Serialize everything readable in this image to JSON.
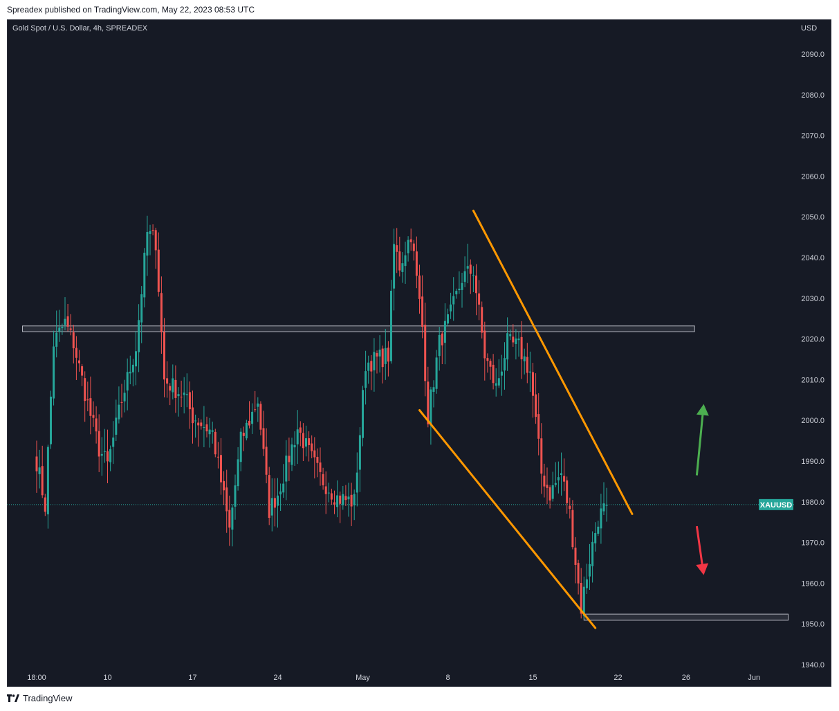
{
  "header": {
    "caption": "Spreadex published on TradingView.com, May 22, 2023 08:53 UTC"
  },
  "footer": {
    "brand": "TradingView"
  },
  "colors": {
    "background": "#161a25",
    "up": "#26a69a",
    "down": "#ef5350",
    "trendline": "#ff9800",
    "zone_fill": "#2a2e39",
    "zone_border": "#b2b5be",
    "price_line": "#26a69a",
    "arrow_up": "#4caf50",
    "arrow_down": "#f23645"
  },
  "chart_data": {
    "type": "candlestick",
    "title": "Gold Spot / U.S. Dollar, 4h, SPREADEX",
    "symbol": "XAUUSD",
    "currency": "USD",
    "timeframe": "4h",
    "grid": false,
    "ylim": [
      1934,
      2100
    ],
    "y_ticks": [
      2090.0,
      2080.0,
      2070.0,
      2060.0,
      2050.0,
      2040.0,
      2030.0,
      2020.0,
      2010.0,
      2000.0,
      1990.0,
      1980.0,
      1970.0,
      1960.0,
      1950.0,
      1940.0
    ],
    "x_tick_labels": [
      "18:00",
      "10",
      "17",
      "24",
      "May",
      "8",
      "15",
      "22",
      "26",
      "Jun"
    ],
    "x_tick_bar_index": [
      0,
      25,
      55,
      85,
      115,
      145,
      175,
      205,
      229,
      253
    ],
    "last_price": 1979.3,
    "price_tag": "XAUUSD",
    "key_path": [
      [
        0,
        1990
      ],
      [
        3,
        1979
      ],
      [
        6,
        2019
      ],
      [
        10,
        2024
      ],
      [
        13,
        2019
      ],
      [
        18,
        2004
      ],
      [
        22,
        1993
      ],
      [
        25,
        1989
      ],
      [
        30,
        2005
      ],
      [
        35,
        2018
      ],
      [
        39,
        2046
      ],
      [
        42,
        2044
      ],
      [
        45,
        2010
      ],
      [
        52,
        2006
      ],
      [
        55,
        2001
      ],
      [
        62,
        1997
      ],
      [
        68,
        1973
      ],
      [
        72,
        1995
      ],
      [
        78,
        2005
      ],
      [
        82,
        1978
      ],
      [
        85,
        1982
      ],
      [
        92,
        1998
      ],
      [
        100,
        1986
      ],
      [
        106,
        1981
      ],
      [
        112,
        1980
      ],
      [
        116,
        2014
      ],
      [
        124,
        2016
      ],
      [
        126,
        2043
      ],
      [
        128,
        2038
      ],
      [
        132,
        2046
      ],
      [
        136,
        2023
      ],
      [
        138,
        2001
      ],
      [
        142,
        2019
      ],
      [
        146,
        2026
      ],
      [
        150,
        2035
      ],
      [
        154,
        2037
      ],
      [
        158,
        2016
      ],
      [
        162,
        2008
      ],
      [
        166,
        2019
      ],
      [
        170,
        2018
      ],
      [
        174,
        2012
      ],
      [
        178,
        1987
      ],
      [
        181,
        1982
      ],
      [
        185,
        1987
      ],
      [
        188,
        1977
      ],
      [
        192,
        1954
      ],
      [
        195,
        1966
      ],
      [
        198,
        1976
      ],
      [
        201,
        1979
      ]
    ],
    "horizontal_zones": [
      {
        "price_top": 2023.2,
        "price_bottom": 2021.8,
        "from_bar": -5,
        "to_bar": 232
      },
      {
        "price_top": 1952.4,
        "price_bottom": 1950.9,
        "from_bar": 193,
        "to_bar": 265
      }
    ],
    "trendlines": [
      {
        "from": [
          154,
          2051.5
        ],
        "to": [
          210,
          1977.0
        ]
      },
      {
        "from": [
          135,
          2002.5
        ],
        "to": [
          197,
          1949.0
        ]
      }
    ],
    "arrows": [
      {
        "direction": "up",
        "bar": 234,
        "price_from": 1986.5,
        "price_to": 2004.0
      },
      {
        "direction": "down",
        "bar": 234,
        "price_from": 1974.0,
        "price_to": 1962.0
      }
    ]
  }
}
